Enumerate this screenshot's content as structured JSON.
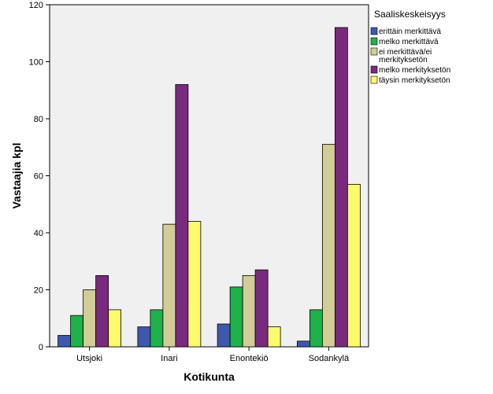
{
  "chart_data": {
    "type": "bar",
    "xlabel": "Kotikunta",
    "ylabel": "Vastaajia kpl",
    "ylim": [
      0,
      120
    ],
    "yticks": [
      0,
      20,
      40,
      60,
      80,
      100,
      120
    ],
    "categories": [
      "Utsjoki",
      "Inari",
      "Enontekiö",
      "Sodankylä"
    ],
    "legend": {
      "title": "Saaliskeskeisyys",
      "placement": "right"
    },
    "series": [
      {
        "name": "erittäin merkittävä",
        "color": "#3e58ac",
        "values": [
          4,
          7,
          8,
          2
        ]
      },
      {
        "name": "melko merkittävä",
        "color": "#1fb14a",
        "values": [
          11,
          13,
          21,
          13
        ]
      },
      {
        "name": "ei merkittävä/ei merkityksetön",
        "legend_lines": [
          "ei merkittävä/ei",
          "merkityksetön"
        ],
        "color": "#d2cc96",
        "values": [
          20,
          43,
          25,
          71
        ]
      },
      {
        "name": "melko merkityksetön",
        "color": "#7a2a7e",
        "values": [
          25,
          92,
          27,
          112
        ]
      },
      {
        "name": "täysin merkityksetön",
        "color": "#fbf96e",
        "values": [
          13,
          44,
          7,
          57
        ]
      }
    ],
    "grid": false,
    "background": "#f0f0f0"
  }
}
